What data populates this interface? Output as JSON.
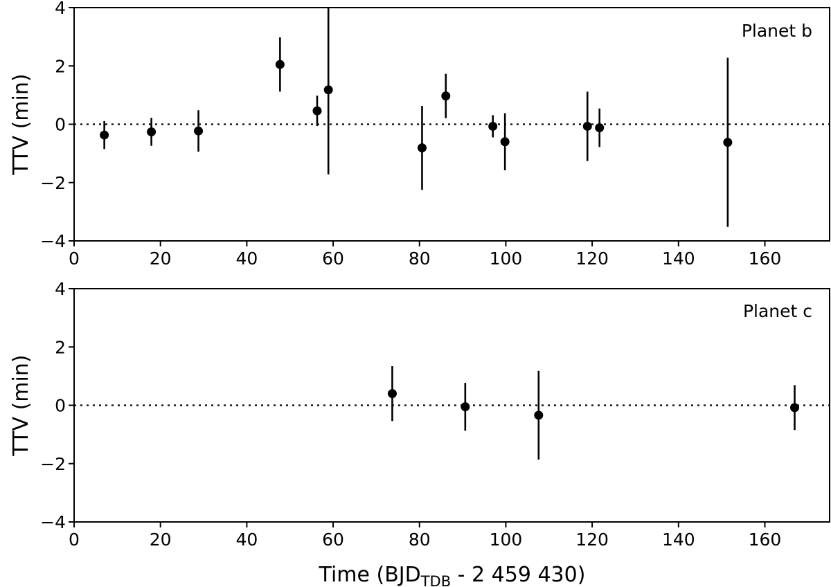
{
  "chart_data": [
    {
      "type": "scatter",
      "annotation": "Planet b",
      "ylabel": "TTV (min)",
      "xlabel": "",
      "xlim": [
        0,
        175
      ],
      "ylim": [
        -4,
        4
      ],
      "xticks": [
        "0",
        "20",
        "40",
        "60",
        "80",
        "100",
        "120",
        "140",
        "160"
      ],
      "yticks": [
        "−4",
        "−2",
        "0",
        "2",
        "4"
      ],
      "reference_line": 0,
      "points": [
        {
          "x": 7.0,
          "y": -0.37,
          "err": 0.48
        },
        {
          "x": 17.9,
          "y": -0.26,
          "err": 0.48
        },
        {
          "x": 28.8,
          "y": -0.23,
          "err": 0.71
        },
        {
          "x": 47.7,
          "y": 2.05,
          "err": 0.93
        },
        {
          "x": 56.3,
          "y": 0.46,
          "err": 0.52
        },
        {
          "x": 58.9,
          "y": 1.18,
          "err": 2.9
        },
        {
          "x": 80.6,
          "y": -0.81,
          "err": 1.44
        },
        {
          "x": 86.1,
          "y": 0.97,
          "err": 0.76
        },
        {
          "x": 97.0,
          "y": -0.07,
          "err": 0.38
        },
        {
          "x": 99.8,
          "y": -0.6,
          "err": 0.98
        },
        {
          "x": 118.9,
          "y": -0.07,
          "err": 1.19
        },
        {
          "x": 121.7,
          "y": -0.12,
          "err": 0.66
        },
        {
          "x": 151.4,
          "y": -0.62,
          "err": 2.9
        }
      ]
    },
    {
      "type": "scatter",
      "annotation": "Planet c",
      "ylabel": "TTV (min)",
      "xlabel": "Time (BJD_TDB - 2 459 430)",
      "xlabel_main": "Time (BJD",
      "xlabel_sub": "TDB",
      "xlabel_tail": " - 2 459 430)",
      "xlim": [
        0,
        175
      ],
      "ylim": [
        -4,
        4
      ],
      "xticks": [
        "0",
        "20",
        "40",
        "60",
        "80",
        "100",
        "120",
        "140",
        "160"
      ],
      "yticks": [
        "−4",
        "−2",
        "0",
        "2",
        "4"
      ],
      "reference_line": 0,
      "points": [
        {
          "x": 73.7,
          "y": 0.4,
          "err": 0.94
        },
        {
          "x": 90.6,
          "y": -0.05,
          "err": 0.82
        },
        {
          "x": 107.6,
          "y": -0.34,
          "err": 1.52
        },
        {
          "x": 166.9,
          "y": -0.08,
          "err": 0.77
        }
      ]
    }
  ]
}
